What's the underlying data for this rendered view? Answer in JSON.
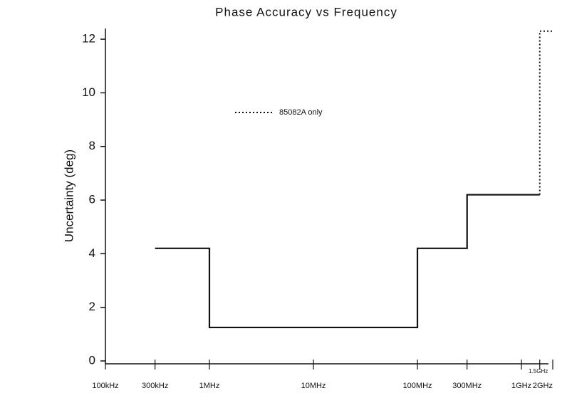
{
  "chart_data": {
    "type": "line",
    "title": "Phase Accuracy vs Frequency",
    "ylabel": "Uncertainty (deg)",
    "xscale": "log",
    "xlim": [
      100000,
      2000000000
    ],
    "ylim": [
      0,
      12.4
    ],
    "xticks": [
      {
        "value": 100000,
        "label": "100kHz"
      },
      {
        "value": 300000,
        "label": "300kHz"
      },
      {
        "value": 1000000,
        "label": "1MHz"
      },
      {
        "value": 10000000,
        "label": "10MHz"
      },
      {
        "value": 100000000,
        "label": "100MHz"
      },
      {
        "value": 300000000,
        "label": "300MHz"
      },
      {
        "value": 1000000000,
        "label": "1GHz"
      },
      {
        "value": 1500000000,
        "label": "1.5GHz"
      },
      {
        "value": 2000000000,
        "label": "2GHz"
      }
    ],
    "yticks": [
      0,
      2,
      4,
      6,
      8,
      10,
      12
    ],
    "series": [
      {
        "color": "#111111",
        "style": "solid",
        "x": [
          300000,
          1000000,
          1000000,
          100000000,
          100000000,
          300000000,
          300000000,
          1500000000
        ],
        "values": [
          4.2,
          4.2,
          1.25,
          1.25,
          4.2,
          4.2,
          6.2,
          6.2
        ]
      },
      {
        "name": "85082A only",
        "color": "#111111",
        "style": "dotted",
        "x": [
          1500000000,
          1500000000,
          2000000000
        ],
        "values": [
          6.2,
          12.3,
          12.3
        ]
      }
    ]
  }
}
